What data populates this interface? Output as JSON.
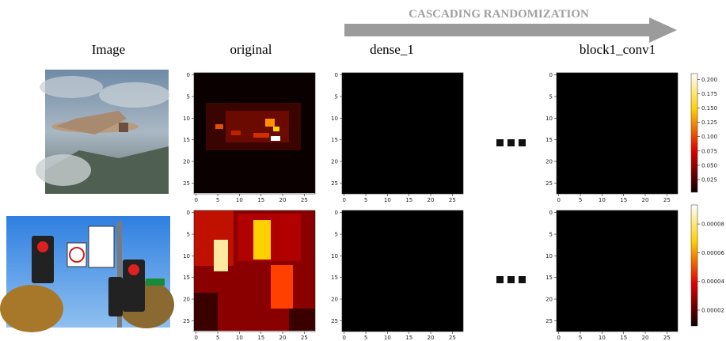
{
  "header": {
    "arrow_label": "CASCADING RANDOMIZATION"
  },
  "columns": [
    "Image",
    "original",
    "dense_1",
    "block1_conv1"
  ],
  "axis_ticks": [
    0,
    5,
    10,
    15,
    20,
    25
  ],
  "colorbars": [
    {
      "ticks": [
        "0.025",
        "0.050",
        "0.075",
        "0.100",
        "0.125",
        "0.150",
        "0.175",
        "0.200"
      ]
    },
    {
      "ticks": [
        "0.00002",
        "0.00004",
        "0.00006",
        "0.00008"
      ]
    }
  ]
}
